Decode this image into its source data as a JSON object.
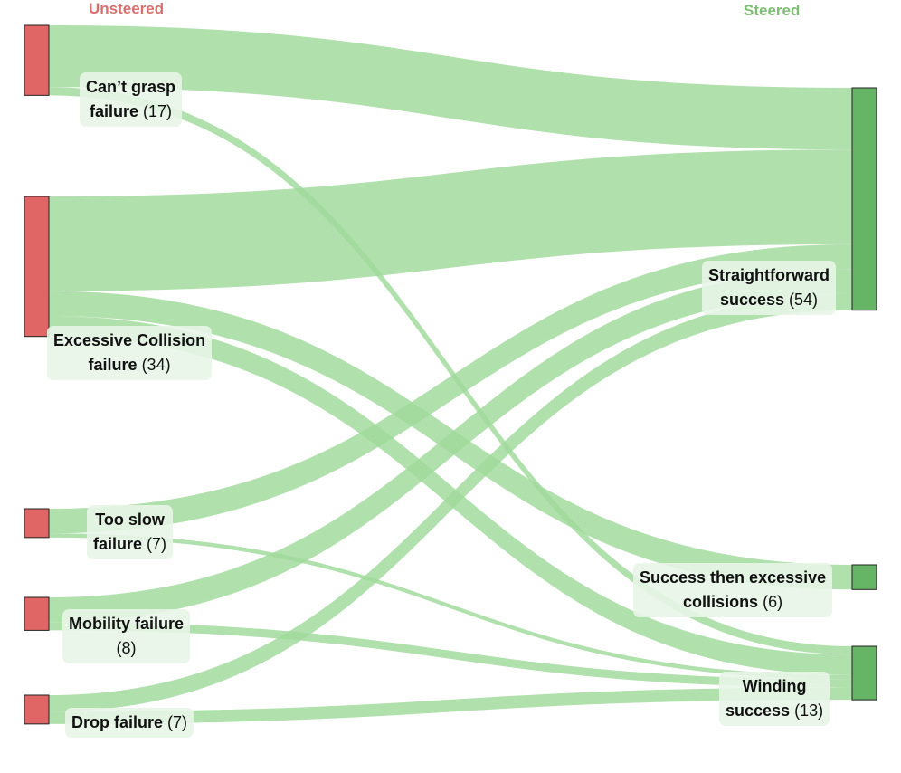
{
  "headers": {
    "left": "Unsteered",
    "right": "Steered"
  },
  "colors": {
    "left_header": "#d87070",
    "right_header": "#7cbf72",
    "source_node": "#e06666",
    "target_node": "#66b566",
    "link": "#9fd99a"
  },
  "chart_data": {
    "type": "sankey",
    "sources": [
      {
        "id": "cant_grasp",
        "line1": "Can’t grasp",
        "line2": "failure",
        "count": "(17)",
        "value": 17
      },
      {
        "id": "excessive_collision",
        "line1": "Excessive Collision",
        "line2": "failure",
        "count": "(34)",
        "value": 34
      },
      {
        "id": "too_slow",
        "line1": "Too slow",
        "line2": "failure",
        "count": "(7)",
        "value": 7
      },
      {
        "id": "mobility",
        "line1": "Mobility failure",
        "line2": "",
        "count": "(8)",
        "value": 8
      },
      {
        "id": "drop",
        "line1": "Drop failure",
        "line2": "",
        "count": "(7)",
        "value": 7
      }
    ],
    "targets": [
      {
        "id": "straightforward",
        "line1": "Straightforward",
        "line2": "success",
        "count": "(54)",
        "value": 54
      },
      {
        "id": "success_then_collisions",
        "line1": "Success then excessive",
        "line2": "collisions",
        "count": "(6)",
        "value": 6
      },
      {
        "id": "winding",
        "line1": "Winding",
        "line2": "success",
        "count": "(13)",
        "value": 13
      }
    ],
    "links": [
      {
        "source": "cant_grasp",
        "target": "straightforward",
        "value": 15
      },
      {
        "source": "cant_grasp",
        "target": "winding",
        "value": 2
      },
      {
        "source": "excessive_collision",
        "target": "straightforward",
        "value": 23
      },
      {
        "source": "excessive_collision",
        "target": "success_then_collisions",
        "value": 6
      },
      {
        "source": "excessive_collision",
        "target": "winding",
        "value": 5
      },
      {
        "source": "too_slow",
        "target": "straightforward",
        "value": 6
      },
      {
        "source": "too_slow",
        "target": "winding",
        "value": 1
      },
      {
        "source": "mobility",
        "target": "straightforward",
        "value": 6
      },
      {
        "source": "mobility",
        "target": "winding",
        "value": 2
      },
      {
        "source": "drop",
        "target": "straightforward",
        "value": 4
      },
      {
        "source": "drop",
        "target": "winding",
        "value": 3
      }
    ]
  }
}
